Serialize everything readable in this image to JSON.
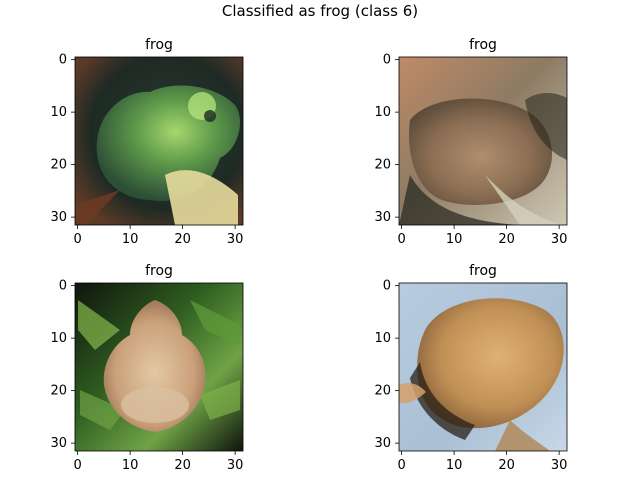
{
  "figure": {
    "suptitle": "Classified as frog (class 6)"
  },
  "chart_data": [
    {
      "type": "image",
      "title": "frog",
      "x_ticks": [
        0,
        10,
        20,
        30
      ],
      "y_ticks": [
        0,
        10,
        20,
        30
      ],
      "xlim": [
        -0.5,
        31.5
      ],
      "ylim": [
        31.5,
        -0.5
      ],
      "grid": false,
      "image_size": [
        32,
        32
      ],
      "dominant_colors": [
        "#1e2a24",
        "#3f6a3a",
        "#9fd06a",
        "#e8dfa0",
        "#6a3a22"
      ]
    },
    {
      "type": "image",
      "title": "frog",
      "x_ticks": [
        0,
        10,
        20,
        30
      ],
      "y_ticks": [
        0,
        10,
        20,
        30
      ],
      "xlim": [
        -0.5,
        31.5
      ],
      "ylim": [
        31.5,
        -0.5
      ],
      "grid": false,
      "image_size": [
        32,
        32
      ],
      "dominant_colors": [
        "#b07a55",
        "#8c7a60",
        "#2a2a22",
        "#cfc8b5",
        "#a0a090"
      ]
    },
    {
      "type": "image",
      "title": "frog",
      "x_ticks": [
        0,
        10,
        20,
        30
      ],
      "y_ticks": [
        0,
        10,
        20,
        30
      ],
      "xlim": [
        -0.5,
        31.5
      ],
      "ylim": [
        31.5,
        -0.5
      ],
      "grid": false,
      "image_size": [
        32,
        32
      ],
      "dominant_colors": [
        "#0f140c",
        "#3e7a2a",
        "#7fb04a",
        "#d9bf98",
        "#caa07a"
      ]
    },
    {
      "type": "image",
      "title": "frog",
      "x_ticks": [
        0,
        10,
        20,
        30
      ],
      "y_ticks": [
        0,
        10,
        20,
        30
      ],
      "xlim": [
        -0.5,
        31.5
      ],
      "ylim": [
        31.5,
        -0.5
      ],
      "grid": false,
      "image_size": [
        32,
        32
      ],
      "dominant_colors": [
        "#b8cce0",
        "#d8a66a",
        "#b9884f",
        "#2a2018",
        "#e2d2b8"
      ]
    }
  ]
}
